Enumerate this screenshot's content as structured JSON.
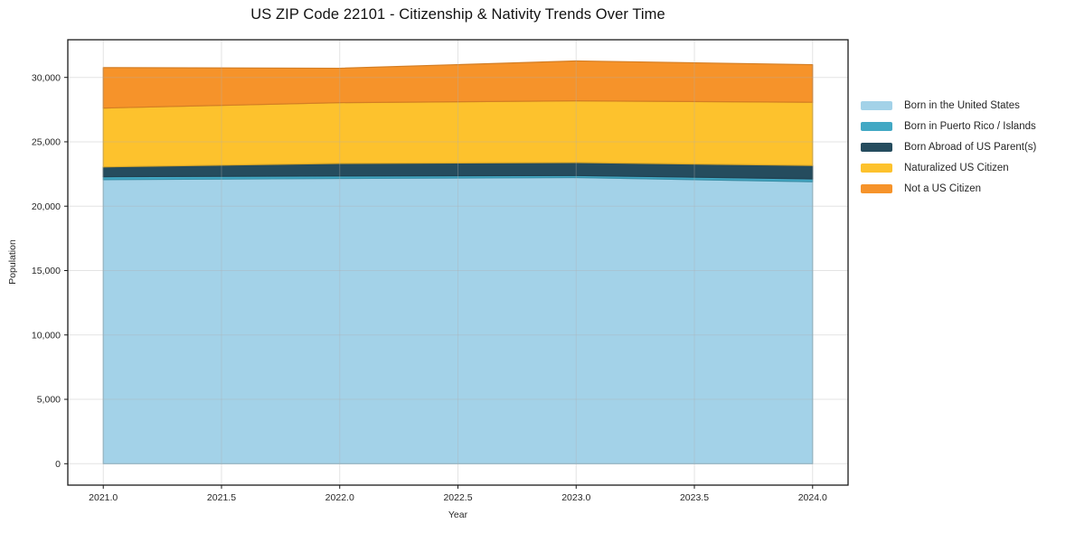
{
  "chart_data": {
    "type": "area",
    "title": "US ZIP Code 22101 - Citizenship & Nativity Trends Over Time",
    "xlabel": "Year",
    "ylabel": "Population",
    "x": [
      2021,
      2022,
      2023,
      2024
    ],
    "stack_order": "bottom-to-top",
    "series": [
      {
        "name": "Born in the United States",
        "color": "#A3D2E8",
        "values": [
          22060,
          22150,
          22220,
          21900
        ]
      },
      {
        "name": "Born in Puerto Rico / Islands",
        "color": "#42A8C4",
        "values": [
          230,
          200,
          160,
          220
        ]
      },
      {
        "name": "Born Abroad of US Parent(s)",
        "color": "#254C5E",
        "values": [
          760,
          970,
          1010,
          1040
        ]
      },
      {
        "name": "Naturalized US Citizen",
        "color": "#FDC22D",
        "values": [
          4570,
          4720,
          4790,
          4910
        ]
      },
      {
        "name": "Not a US Citizen",
        "color": "#F6932A",
        "values": [
          3140,
          2670,
          3100,
          2920
        ]
      }
    ],
    "totals": [
      30760,
      30710,
      31280,
      30990
    ],
    "xticks": [
      2021.0,
      2021.5,
      2022.0,
      2022.5,
      2023.0,
      2023.5,
      2024.0
    ],
    "xtick_labels": [
      "2021.0",
      "2021.5",
      "2022.0",
      "2022.5",
      "2023.0",
      "2023.5",
      "2024.0"
    ],
    "yticks": [
      0,
      5000,
      10000,
      15000,
      20000,
      25000,
      30000
    ],
    "ytick_labels": [
      "0",
      "5,000",
      "10,000",
      "15,000",
      "20,000",
      "25,000",
      "30,000"
    ],
    "xlim": [
      2020.85,
      2024.15
    ],
    "ylim": [
      -1663,
      32925
    ],
    "grid": true,
    "legend_position": "outside-right",
    "colors": {
      "grid": "#b0b0b0",
      "spine": "#1a1a1a",
      "tick_label": "#262626",
      "background": "#ffffff"
    }
  }
}
